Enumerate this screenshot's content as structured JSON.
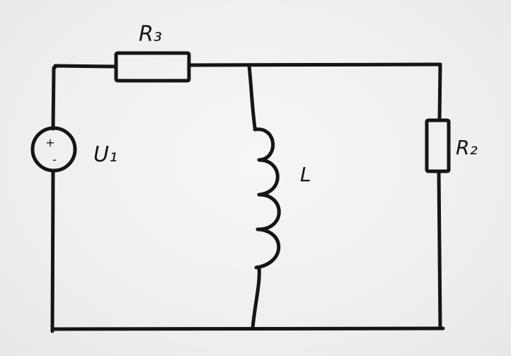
{
  "components": {
    "source": {
      "label": "U₁",
      "plus": "+",
      "minus": "-"
    },
    "resistor_top": {
      "label": "R₃"
    },
    "inductor": {
      "label": "L"
    },
    "resistor_right": {
      "label": "R₂"
    }
  }
}
